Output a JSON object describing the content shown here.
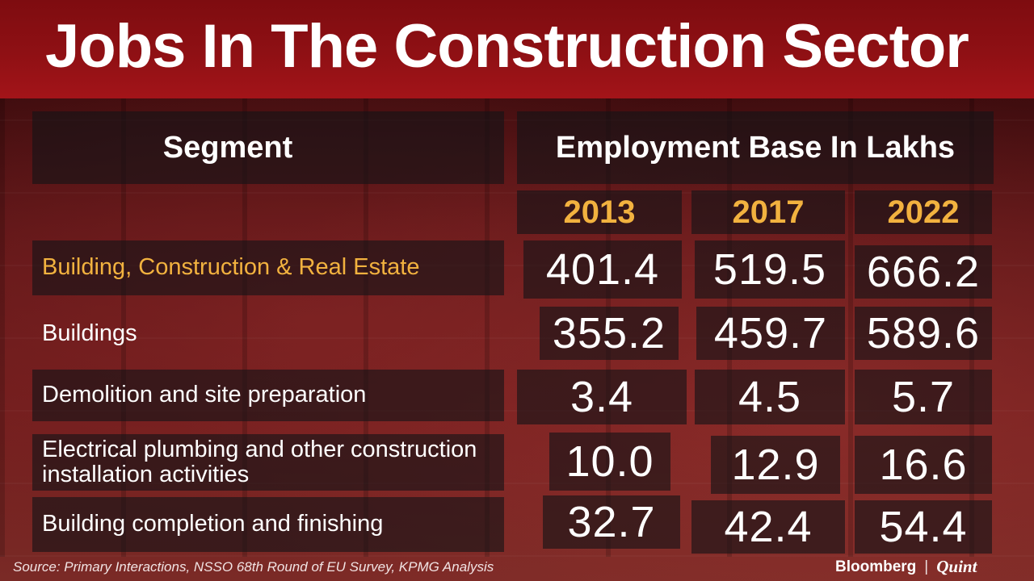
{
  "title": "Jobs In The Construction Sector",
  "chart_data": {
    "type": "table",
    "title": "Jobs In The Construction Sector",
    "column_header_left": "Segment",
    "column_header_group": "Employment Base In Lakhs",
    "years": [
      "2013",
      "2017",
      "2022"
    ],
    "rows": [
      {
        "label": "Building, Construction & Real Estate",
        "values": [
          "401.4",
          "519.5",
          "666.2"
        ],
        "highlight": true
      },
      {
        "label": "Buildings",
        "values": [
          "355.2",
          "459.7",
          "589.6"
        ],
        "highlight": false
      },
      {
        "label": "Demolition and site preparation",
        "values": [
          "3.4",
          "4.5",
          "5.7"
        ],
        "highlight": false
      },
      {
        "label_lines": [
          "Electrical plumbing and other construction",
          "installation activities"
        ],
        "values": [
          "10.0",
          "12.9",
          "16.6"
        ],
        "highlight": false
      },
      {
        "label": "Building completion and finishing",
        "values": [
          "32.7",
          "42.4",
          "54.4"
        ],
        "highlight": false
      }
    ],
    "colors": {
      "highlight": "#f2b23f",
      "title_bar": "#8f1014",
      "text": "#ffffff"
    }
  },
  "footer": {
    "source": "Source: Primary Interactions, NSSO 68th Round of EU Survey, KPMG Analysis",
    "brand_primary": "Bloomberg",
    "brand_separator": "|",
    "brand_secondary": "Quint"
  }
}
